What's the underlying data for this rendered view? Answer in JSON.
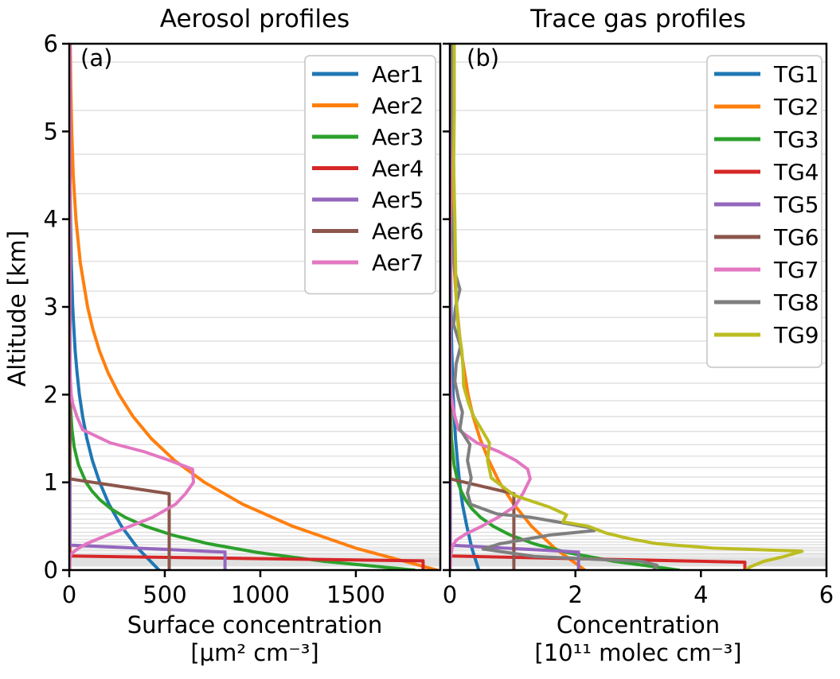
{
  "figure": {
    "background": "#ffffff"
  },
  "grid_levels_km": [
    5.79,
    5.24,
    4.74,
    4.29,
    3.88,
    3.52,
    3.18,
    2.88,
    2.61,
    2.36,
    2.13,
    1.93,
    1.75,
    1.58,
    1.43,
    1.3,
    1.17,
    1.06,
    0.96,
    0.87,
    0.79,
    0.71,
    0.64,
    0.58,
    0.53,
    0.48,
    0.43,
    0.39,
    0.35,
    0.32,
    0.29,
    0.26,
    0.24,
    0.22,
    0.19,
    0.18,
    0.16,
    0.14,
    0.13,
    0.12,
    0.11,
    0.1,
    0.09,
    0.08,
    0.07,
    0.065,
    0.059,
    0.053,
    0.048
  ],
  "chart_data": [
    {
      "type": "line",
      "title": "Aerosol profiles",
      "letter": "(a)",
      "xlabel_lines": [
        "Surface concentration",
        "[μm² cm⁻³]"
      ],
      "ylabel": "Altitude [km]",
      "xlim": [
        0,
        1942
      ],
      "ylim": [
        0,
        6
      ],
      "xticks": {
        "values": [
          0,
          500,
          1000,
          1500
        ],
        "labels": [
          "0",
          "500",
          "1000",
          "1500"
        ]
      },
      "yticks": {
        "values": [
          0,
          1,
          2,
          3,
          4,
          5,
          6
        ],
        "labels": [
          "0",
          "1",
          "2",
          "3",
          "4",
          "5",
          "6"
        ]
      },
      "grid": "horizontal model-level gridlines, no vertical grid",
      "legend": {
        "position": "upper right"
      },
      "series": [
        {
          "name": "Aer1",
          "color": "#1f77b4",
          "points": [
            [
              470,
              0
            ],
            [
              358,
              0.25
            ],
            [
              273,
              0.5
            ],
            [
              208,
              0.75
            ],
            [
              159,
              1
            ],
            [
              121,
              1.25
            ],
            [
              92,
              1.5
            ],
            [
              70,
              1.75
            ],
            [
              53,
              2
            ],
            [
              41,
              2.25
            ],
            [
              31,
              2.5
            ],
            [
              24,
              2.75
            ],
            [
              18,
              3
            ],
            [
              10.5,
              3.5
            ],
            [
              6.1,
              4
            ],
            [
              3.5,
              4.5
            ],
            [
              2.1,
              5
            ],
            [
              1.2,
              5.5
            ],
            [
              0.7,
              6
            ]
          ]
        },
        {
          "name": "Aer2",
          "color": "#ff7f0e",
          "points": [
            [
              1925,
              0
            ],
            [
              1499,
              0.25
            ],
            [
              1168,
              0.5
            ],
            [
              909,
              0.75
            ],
            [
              708,
              1
            ],
            [
              551,
              1.25
            ],
            [
              429,
              1.5
            ],
            [
              334,
              1.75
            ],
            [
              261,
              2
            ],
            [
              203,
              2.25
            ],
            [
              158,
              2.5
            ],
            [
              123,
              2.75
            ],
            [
              96,
              3
            ],
            [
              58,
              3.5
            ],
            [
              35,
              4
            ],
            [
              21,
              4.5
            ],
            [
              13,
              5
            ],
            [
              8,
              5.5
            ],
            [
              5,
              6
            ]
          ]
        },
        {
          "name": "Aer3",
          "color": "#2ca02c",
          "points": [
            [
              1805,
              0
            ],
            [
              1334,
              0.1
            ],
            [
              986,
              0.2
            ],
            [
              729,
              0.3
            ],
            [
              539,
              0.4
            ],
            [
              398,
              0.5
            ],
            [
              294,
              0.6
            ],
            [
              218,
              0.7
            ],
            [
              161,
              0.8
            ],
            [
              119,
              0.9
            ],
            [
              88,
              1
            ],
            [
              48,
              1.2
            ],
            [
              26,
              1.4
            ],
            [
              14,
              1.6
            ],
            [
              8,
              1.8
            ],
            [
              4,
              2
            ],
            [
              1,
              2.5
            ],
            [
              0.3,
              3
            ],
            [
              0.1,
              6
            ]
          ]
        },
        {
          "name": "Aer4",
          "color": "#d62728",
          "points": [
            [
              1852,
              0
            ],
            [
              1852,
              0.105
            ],
            [
              3,
              0.16
            ],
            [
              3,
              6
            ]
          ]
        },
        {
          "name": "Aer5",
          "color": "#9467bd",
          "points": [
            [
              815,
              0
            ],
            [
              815,
              0.205
            ],
            [
              3,
              0.285
            ],
            [
              3,
              6
            ]
          ]
        },
        {
          "name": "Aer6",
          "color": "#8c564b",
          "points": [
            [
              523,
              0
            ],
            [
              523,
              0.87
            ],
            [
              3,
              1.04
            ],
            [
              3,
              6
            ]
          ]
        },
        {
          "name": "Aer7",
          "color": "#e377c2",
          "points": [
            [
              3,
              0
            ],
            [
              3,
              0.1
            ],
            [
              5,
              0.15
            ],
            [
              10,
              0.18
            ],
            [
              24,
              0.21
            ],
            [
              50,
              0.25
            ],
            [
              90,
              0.3
            ],
            [
              200,
              0.4
            ],
            [
              320,
              0.5
            ],
            [
              435,
              0.6
            ],
            [
              556,
              0.75
            ],
            [
              608,
              0.87
            ],
            [
              650,
              1.0
            ],
            [
              645,
              1.15
            ],
            [
              525,
              1.25
            ],
            [
              390,
              1.35
            ],
            [
              215,
              1.45
            ],
            [
              70,
              1.6
            ],
            [
              40,
              1.75
            ],
            [
              18,
              1.9
            ],
            [
              10,
              2.0
            ],
            [
              5,
              2.2
            ],
            [
              3,
              2.6
            ],
            [
              3,
              6
            ]
          ]
        }
      ]
    },
    {
      "type": "line",
      "title": "Trace gas profiles",
      "letter": "(b)",
      "xlabel_lines": [
        "Concentration",
        "[10¹¹ molec cm⁻³]"
      ],
      "ylabel": "Altitude [km]",
      "xlim": [
        0,
        6
      ],
      "ylim": [
        0,
        6
      ],
      "xticks": {
        "values": [
          0,
          2,
          4,
          6
        ],
        "labels": [
          "0",
          "2",
          "4",
          "6"
        ]
      },
      "yticks": {
        "values": [
          0,
          1,
          2,
          3,
          4,
          5,
          6
        ],
        "labels": []
      },
      "grid": "horizontal model-level gridlines, no vertical grid",
      "legend": {
        "position": "upper right"
      },
      "series": [
        {
          "name": "TG1",
          "color": "#1f77b4",
          "points": [
            [
              0.46,
              0
            ],
            [
              0.35,
              0.25
            ],
            [
              0.27,
              0.5
            ],
            [
              0.2,
              0.75
            ],
            [
              0.155,
              1
            ],
            [
              0.12,
              1.25
            ],
            [
              0.09,
              1.5
            ],
            [
              0.07,
              1.75
            ],
            [
              0.052,
              2
            ],
            [
              0.03,
              2.5
            ],
            [
              0.018,
              3
            ],
            [
              0.006,
              4
            ],
            [
              0.002,
              5
            ],
            [
              0.001,
              6
            ]
          ]
        },
        {
          "name": "TG2",
          "color": "#ff7f0e",
          "points": [
            [
              2.15,
              0
            ],
            [
              1.67,
              0.25
            ],
            [
              1.3,
              0.5
            ],
            [
              1.02,
              0.75
            ],
            [
              0.79,
              1
            ],
            [
              0.62,
              1.25
            ],
            [
              0.48,
              1.5
            ],
            [
              0.37,
              1.75
            ],
            [
              0.29,
              2
            ],
            [
              0.18,
              2.5
            ],
            [
              0.11,
              3
            ],
            [
              0.065,
              3.5
            ],
            [
              0.04,
              4
            ],
            [
              0.014,
              5
            ],
            [
              0.005,
              6
            ]
          ]
        },
        {
          "name": "TG3",
          "color": "#2ca02c",
          "points": [
            [
              3.65,
              0
            ],
            [
              2.62,
              0.1
            ],
            [
              1.87,
              0.2
            ],
            [
              1.34,
              0.3
            ],
            [
              0.96,
              0.4
            ],
            [
              0.69,
              0.5
            ],
            [
              0.49,
              0.6
            ],
            [
              0.35,
              0.7
            ],
            [
              0.25,
              0.8
            ],
            [
              0.18,
              0.9
            ],
            [
              0.13,
              1
            ],
            [
              0.067,
              1.2
            ],
            [
              0.025,
              1.5
            ],
            [
              0.005,
              2
            ],
            [
              0.002,
              6
            ]
          ]
        },
        {
          "name": "TG4",
          "color": "#d62728",
          "points": [
            [
              4.7,
              0
            ],
            [
              4.7,
              0.09
            ],
            [
              0.005,
              0.16
            ],
            [
              0.005,
              6
            ]
          ]
        },
        {
          "name": "TG5",
          "color": "#9467bd",
          "points": [
            [
              2.05,
              0
            ],
            [
              2.05,
              0.205
            ],
            [
              0.005,
              0.285
            ],
            [
              0.005,
              6
            ]
          ]
        },
        {
          "name": "TG6",
          "color": "#8c564b",
          "points": [
            [
              1.02,
              0
            ],
            [
              1.02,
              0.87
            ],
            [
              0.005,
              1.04
            ],
            [
              0.005,
              6
            ]
          ]
        },
        {
          "name": "TG7",
          "color": "#e377c2",
          "points": [
            [
              0.005,
              0
            ],
            [
              0.01,
              0.15
            ],
            [
              0.04,
              0.27
            ],
            [
              0.1,
              0.34
            ],
            [
              0.25,
              0.41
            ],
            [
              0.51,
              0.5
            ],
            [
              0.79,
              0.61
            ],
            [
              1.04,
              0.73
            ],
            [
              1.17,
              0.88
            ],
            [
              1.28,
              1.04
            ],
            [
              1.24,
              1.15
            ],
            [
              1.05,
              1.25
            ],
            [
              0.78,
              1.35
            ],
            [
              0.43,
              1.45
            ],
            [
              0.14,
              1.6
            ],
            [
              0.08,
              1.75
            ],
            [
              0.04,
              1.9
            ],
            [
              0.02,
              2.0
            ],
            [
              0.01,
              2.2
            ],
            [
              0.006,
              2.6
            ],
            [
              0.006,
              6
            ]
          ]
        },
        {
          "name": "TG8",
          "color": "#7f7f7f",
          "points": [
            [
              3.25,
              0
            ],
            [
              3.3,
              0.055
            ],
            [
              3.05,
              0.1
            ],
            [
              1.35,
              0.155
            ],
            [
              0.53,
              0.24
            ],
            [
              0.8,
              0.3
            ],
            [
              1.6,
              0.4
            ],
            [
              2.3,
              0.45
            ],
            [
              2.25,
              0.48
            ],
            [
              1.75,
              0.545
            ],
            [
              1.3,
              0.6
            ],
            [
              0.75,
              0.64
            ],
            [
              0.33,
              0.75
            ],
            [
              0.28,
              0.88
            ],
            [
              0.34,
              1.05
            ],
            [
              0.28,
              1.25
            ],
            [
              0.32,
              1.43
            ],
            [
              0.16,
              1.61
            ],
            [
              0.2,
              1.8
            ],
            [
              0.14,
              1.95
            ],
            [
              0.08,
              2.15
            ],
            [
              0.1,
              2.35
            ],
            [
              0.17,
              2.55
            ],
            [
              0.06,
              2.8
            ],
            [
              0.09,
              3.0
            ],
            [
              0.16,
              3.2
            ],
            [
              0.08,
              3.4
            ],
            [
              0.05,
              3.8
            ],
            [
              0.07,
              4.2
            ],
            [
              0.05,
              5.0
            ],
            [
              0.04,
              6
            ]
          ]
        },
        {
          "name": "TG9",
          "color": "#bcbd22",
          "points": [
            [
              4.72,
              0
            ],
            [
              4.78,
              0.035
            ],
            [
              5.0,
              0.1
            ],
            [
              5.3,
              0.15
            ],
            [
              5.61,
              0.215
            ],
            [
              4.2,
              0.25
            ],
            [
              3.3,
              0.3
            ],
            [
              2.85,
              0.36
            ],
            [
              2.5,
              0.42
            ],
            [
              2.2,
              0.5
            ],
            [
              1.8,
              0.55
            ],
            [
              1.86,
              0.63
            ],
            [
              1.58,
              0.72
            ],
            [
              1.03,
              0.85
            ],
            [
              0.66,
              1.05
            ],
            [
              0.6,
              1.25
            ],
            [
              0.63,
              1.45
            ],
            [
              0.5,
              1.61
            ],
            [
              0.38,
              1.75
            ],
            [
              0.3,
              1.9
            ],
            [
              0.22,
              2.1
            ],
            [
              0.21,
              2.3
            ],
            [
              0.19,
              2.5
            ],
            [
              0.13,
              2.8
            ],
            [
              0.1,
              3.1
            ],
            [
              0.09,
              3.5
            ],
            [
              0.08,
              4.0
            ],
            [
              0.06,
              4.6
            ],
            [
              0.07,
              5.2
            ],
            [
              0.07,
              6
            ]
          ]
        }
      ]
    }
  ]
}
